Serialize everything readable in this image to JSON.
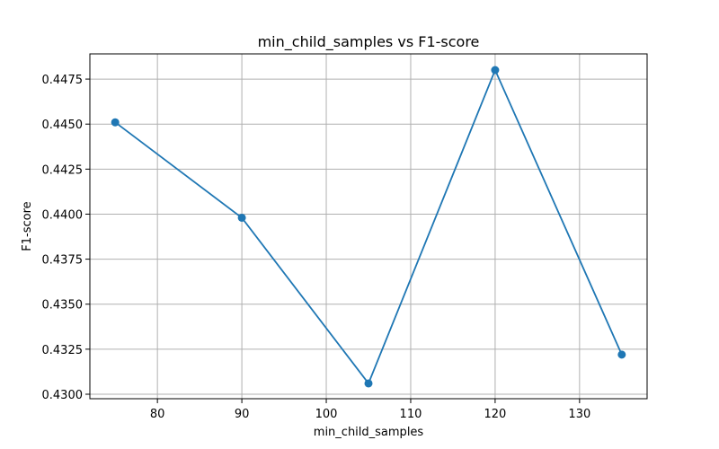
{
  "chart_data": {
    "type": "line",
    "title": "min_child_samples vs F1-score",
    "xlabel": "min_child_samples",
    "ylabel": "F1-score",
    "x": [
      75,
      90,
      105,
      120,
      135
    ],
    "series": [
      {
        "values": [
          0.4451,
          0.4398,
          0.4306,
          0.448,
          0.4322
        ],
        "color": "#1f77b4",
        "marker": "circle"
      }
    ],
    "xlim": [
      72,
      138
    ],
    "ylim": [
      0.42975,
      0.4489
    ],
    "xticks": [
      80,
      90,
      100,
      110,
      120,
      130
    ],
    "yticks": [
      0.43,
      0.4325,
      0.435,
      0.4375,
      0.44,
      0.4425,
      0.445,
      0.4475
    ],
    "xtick_labels": [
      "80",
      "90",
      "100",
      "110",
      "120",
      "130"
    ],
    "ytick_labels": [
      "0.4300",
      "0.4325",
      "0.4350",
      "0.4375",
      "0.4400",
      "0.4425",
      "0.4450",
      "0.4475"
    ],
    "grid": true,
    "legend": "none"
  }
}
